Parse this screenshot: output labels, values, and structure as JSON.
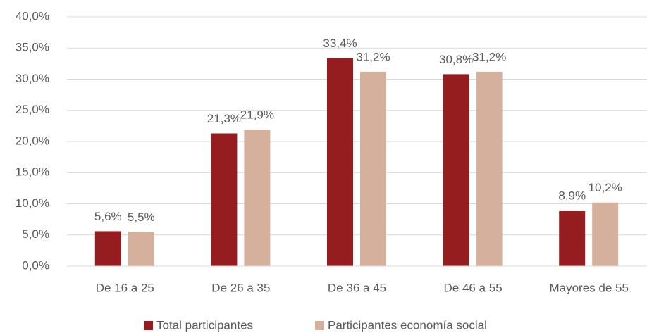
{
  "chart_data": {
    "type": "bar",
    "categories": [
      "De 16 a 25",
      "De 26 a 35",
      "De 36 a 45",
      "De 46 a 55",
      "Mayores de 55"
    ],
    "series": [
      {
        "name": "Total participantes",
        "color": "#951c1f",
        "values": [
          5.6,
          21.3,
          33.4,
          30.8,
          8.9
        ],
        "value_labels": [
          "5,6%",
          "21,3%",
          "33,4%",
          "30,8%",
          "8,9%"
        ]
      },
      {
        "name": "Participantes economía social",
        "color": "#d5b09c",
        "values": [
          5.5,
          21.9,
          31.2,
          31.2,
          10.2
        ],
        "value_labels": [
          "5,5%",
          "21,9%",
          "31,2%",
          "31,2%",
          "10,2%"
        ]
      }
    ],
    "ylim": [
      0,
      40
    ],
    "yticks": [
      {
        "value": 0,
        "label": "0,0%"
      },
      {
        "value": 5,
        "label": "5,0%"
      },
      {
        "value": 10,
        "label": "10,0%"
      },
      {
        "value": 15,
        "label": "15,0%"
      },
      {
        "value": 20,
        "label": "20,0%"
      },
      {
        "value": 25,
        "label": "25,0%"
      },
      {
        "value": 30,
        "label": "30,0%"
      },
      {
        "value": 35,
        "label": "35,0%"
      },
      {
        "value": 40,
        "label": "40,0%"
      }
    ],
    "grid": true,
    "legend": "bottom"
  }
}
